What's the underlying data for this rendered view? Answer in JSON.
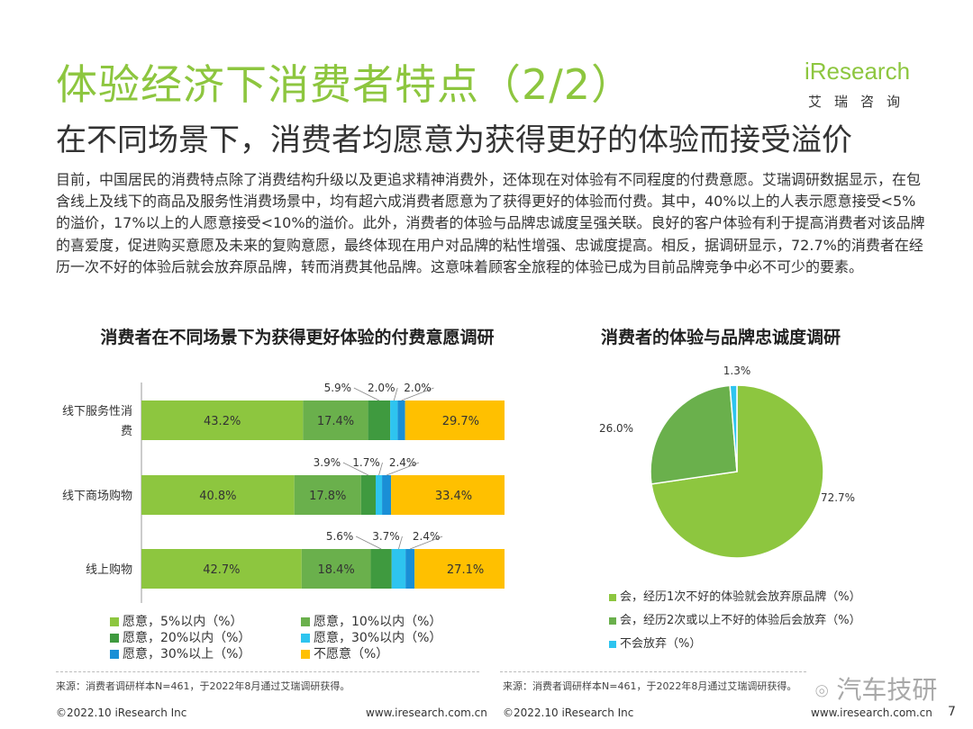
{
  "header": {
    "title": "体验经济下消费者特点（2/2）",
    "subtitle": "在不同场景下，消费者均愿意为获得更好的体验而接受溢价",
    "logo_brand": "iResearch",
    "logo_cn": "艾瑞咨询"
  },
  "paragraph": "目前，中国居民的消费特点除了消费结构升级以及更追求精神消费外，还体现在对体验有不同程度的付费意愿。艾瑞调研数据显示，在包含线上及线下的商品及服务性消费场景中，均有超六成消费者愿意为了获得更好的体验而付费。其中，40%以上的人表示愿意接受<5%的溢价，17%以上的人愿意接受<10%的溢价。此外，消费者的体验与品牌忠诚度呈强关联。良好的客户体验有利于提高消费者对该品牌的喜爱度，促进购买意愿及未来的复购意愿，最终体现在用户对品牌的粘性增强、忠诚度提高。相反，据调研显示，72.7%的消费者在经历一次不好的体验后就会放弃原品牌，转而消费其他品牌。这意味着顾客全旅程的体验已成为目前品牌竞争中必不可少的要素。",
  "chart_data": [
    {
      "type": "bar",
      "stacked": true,
      "orientation": "horizontal",
      "title": "消费者在不同场景下为获得更好体验的付费意愿调研",
      "categories": [
        "线下服务性消费",
        "线下商场购物",
        "线上购物"
      ],
      "series": [
        {
          "name": "愿意，5%以内（%）",
          "values": [
            43.2,
            40.8,
            42.7
          ],
          "color": "#8dc63f"
        },
        {
          "name": "愿意，10%以内（%）",
          "values": [
            17.4,
            17.8,
            18.4
          ],
          "color": "#6ab04c"
        },
        {
          "name": "愿意，20%以内（%）",
          "values": [
            5.9,
            3.9,
            5.6
          ],
          "color": "#3f9a3f"
        },
        {
          "name": "愿意，30%以内（%）",
          "values": [
            2.0,
            1.7,
            3.7
          ],
          "color": "#2ec4ef"
        },
        {
          "name": "愿意，30%以上（%）",
          "values": [
            2.0,
            2.4,
            2.4
          ],
          "color": "#1a8fd6"
        },
        {
          "name": "不愿意（%）",
          "values": [
            29.7,
            33.4,
            27.1
          ],
          "color": "#ffc000"
        }
      ],
      "value_labels": [
        [
          "43.2%",
          "17.4%",
          "5.9%",
          "2.0%",
          "2.0%",
          "29.7%"
        ],
        [
          "40.8%",
          "17.8%",
          "3.9%",
          "1.7%",
          "2.4%",
          "33.4%"
        ],
        [
          "42.7%",
          "18.4%",
          "5.6%",
          "3.7%",
          "2.4%",
          "27.1%"
        ]
      ],
      "legend_position": "bottom",
      "grid": false
    },
    {
      "type": "pie",
      "title": "消费者的体验与品牌忠诚度调研",
      "slices": [
        {
          "name": "会，经历1次不好的体验就会放弃原品牌（%）",
          "value": 72.7,
          "label": "72.7%",
          "color": "#8dc63f"
        },
        {
          "name": "会，经历2次或以上不好的体验后会放弃（%）",
          "value": 26.0,
          "label": "26.0%",
          "color": "#6ab04c"
        },
        {
          "name": "不会放弃（%）",
          "value": 1.3,
          "label": "1.3%",
          "color": "#2ec4ef"
        }
      ],
      "legend_position": "bottom"
    }
  ],
  "sources": {
    "left": "来源：消费者调研样本N=461，于2022年8月通过艾瑞调研获得。",
    "right": "来源：消费者调研样本N=461，于2022年8月通过艾瑞调研获得。"
  },
  "footer": {
    "copyright_left": "©2022.10 iResearch Inc",
    "url_left": "www.iresearch.com.cn",
    "copyright_right": "©2022.10 iResearch Inc",
    "url_right": "www.iresearch.com.cn",
    "page_number": "7"
  },
  "watermark": "汽车技研"
}
